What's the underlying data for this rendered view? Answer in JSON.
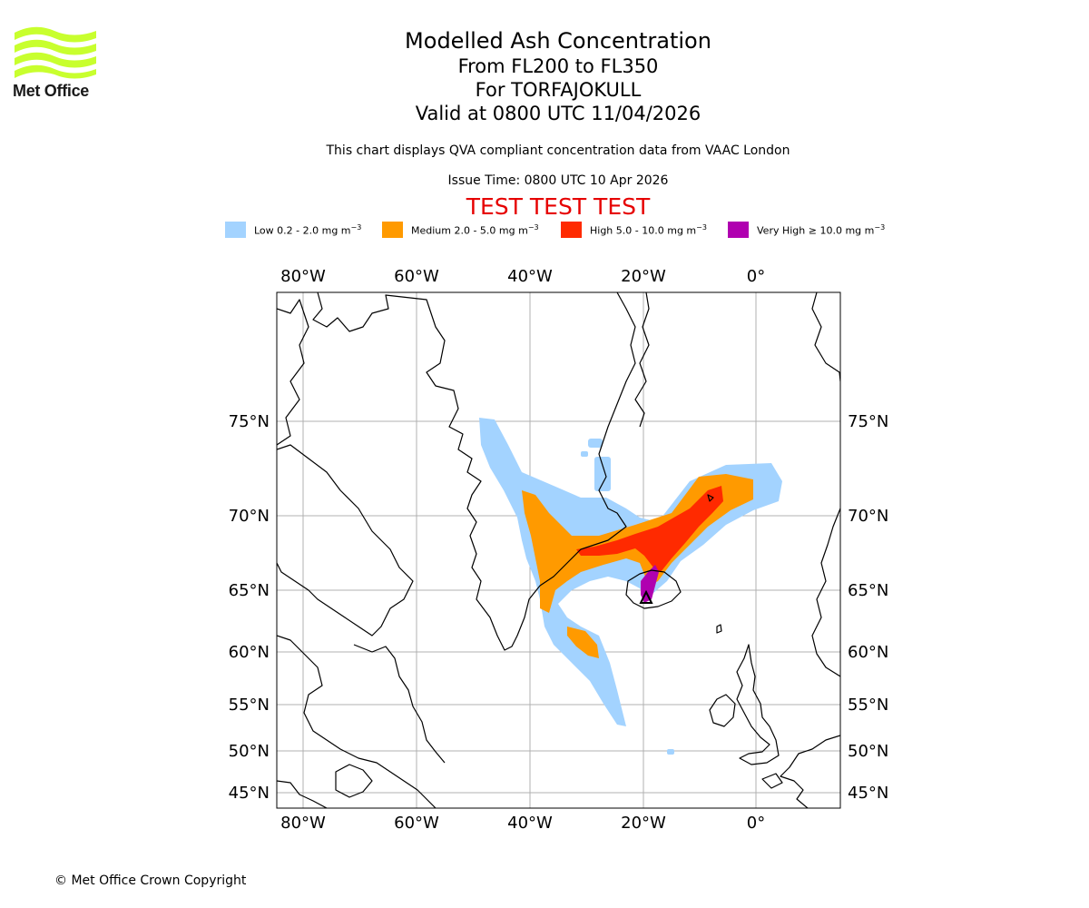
{
  "header": {
    "logo_text": "Met Office",
    "title": "Modelled Ash Concentration",
    "levels": "From FL200 to FL350",
    "volcano": "For TORFAJOKULL",
    "valid": "Valid at 0800 UTC 11/04/2026",
    "description": "This chart displays QVA compliant concentration data from VAAC London",
    "issue_time": "Issue Time: 0800 UTC 10 Apr 2026",
    "test_banner": "TEST TEST TEST"
  },
  "legend": [
    {
      "label": "Low 0.2 - 2.0 mg m",
      "unit_power": "−3",
      "color": "#a3d3ff"
    },
    {
      "label": "Medium 2.0 - 5.0 mg m",
      "unit_power": "−3",
      "color": "#ff9a00"
    },
    {
      "label": "High 5.0 - 10.0 mg m",
      "unit_power": "−3",
      "color": "#ff2a00"
    },
    {
      "label": "Very High  ≥  10.0 mg m",
      "unit_power": "−3",
      "color": "#b000b0"
    }
  ],
  "map": {
    "lon_labels": [
      "80°W",
      "60°W",
      "40°W",
      "20°W",
      "0°"
    ],
    "lat_labels": [
      "75°N",
      "70°N",
      "65°N",
      "60°N",
      "55°N",
      "50°N",
      "45°N"
    ],
    "coast_color": "#000000",
    "grid_color": "#b0b0b0"
  },
  "footer": {
    "copyright": "© Met Office Crown Copyright"
  }
}
